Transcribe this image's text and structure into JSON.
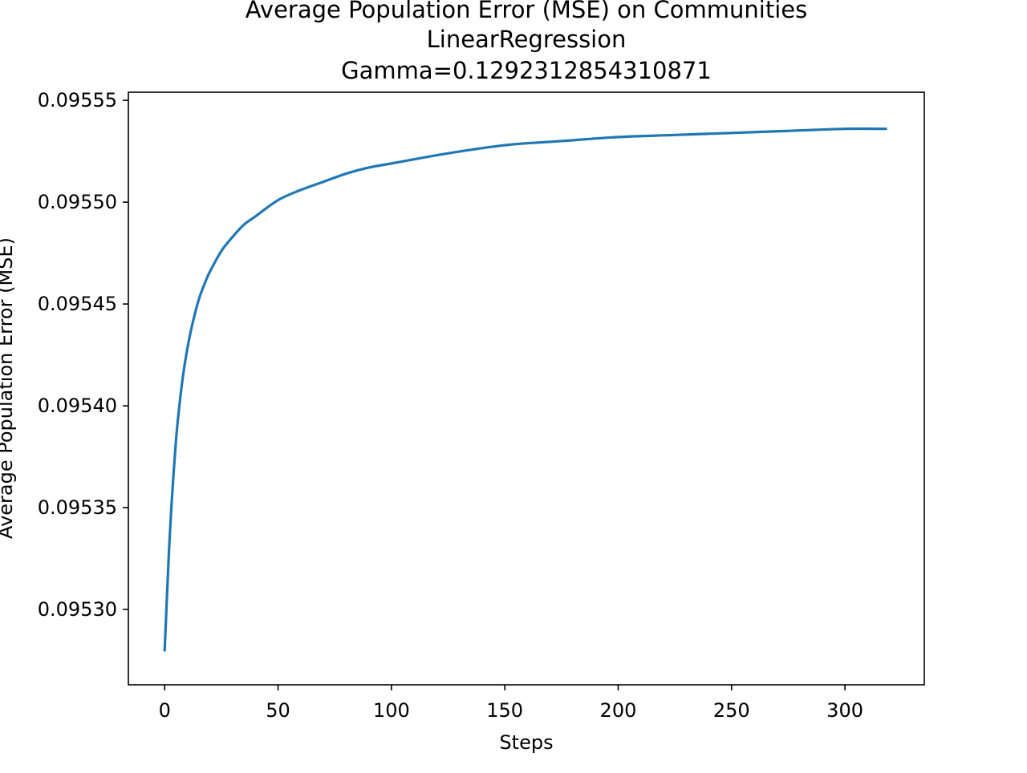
{
  "chart_data": {
    "type": "line",
    "title_lines": [
      "Average Population Error (MSE) on Communities",
      "LinearRegression",
      "Gamma=0.1292312854310871"
    ],
    "xlabel": "Steps",
    "ylabel": "Average Population Error (MSE)",
    "xlim": [
      -16,
      335
    ],
    "ylim": [
      0.095263,
      0.095554
    ],
    "xticks": [
      0,
      50,
      100,
      150,
      200,
      250,
      300
    ],
    "yticks": [
      0.0953,
      0.09535,
      0.0954,
      0.09545,
      0.0955,
      0.09555
    ],
    "ytick_labels": [
      "0.09530",
      "0.09535",
      "0.09540",
      "0.09545",
      "0.09550",
      "0.09555"
    ],
    "grid": false,
    "series": [
      {
        "color": "#1f77b4",
        "x": [
          0,
          1,
          2,
          3,
          4,
          5,
          6,
          8,
          10,
          12,
          15,
          18,
          20,
          25,
          30,
          35,
          40,
          50,
          60,
          70,
          80,
          90,
          100,
          125,
          150,
          175,
          200,
          225,
          250,
          275,
          300,
          318
        ],
        "y": [
          0.09528,
          0.095306,
          0.095331,
          0.095351,
          0.095368,
          0.095383,
          0.095395,
          0.095414,
          0.095428,
          0.095439,
          0.095452,
          0.095461,
          0.095466,
          0.095476,
          0.095483,
          0.095489,
          0.095493,
          0.095501,
          0.095506,
          0.09551,
          0.095514,
          0.095517,
          0.095519,
          0.095524,
          0.095528,
          0.09553,
          0.095532,
          0.095533,
          0.095534,
          0.095535,
          0.095536,
          0.095536
        ]
      }
    ]
  }
}
